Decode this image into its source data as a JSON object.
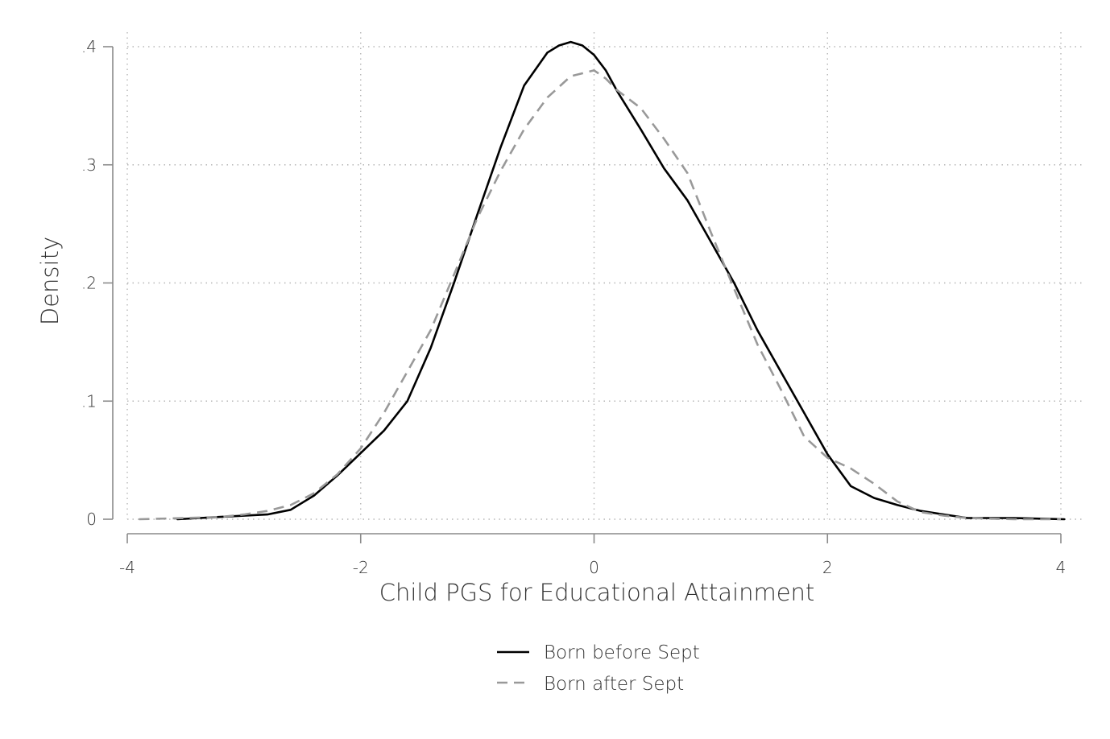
{
  "chart_data": {
    "type": "line",
    "title": "",
    "xlabel": "Child PGS for Educational Attainment",
    "ylabel": "Density",
    "xlim": [
      -4,
      4
    ],
    "ylim": [
      0,
      0.4
    ],
    "x_ticks": [
      -4,
      -2,
      0,
      2,
      4
    ],
    "x_tick_labels": [
      "-4",
      "-2",
      "0",
      "2",
      "4"
    ],
    "y_ticks": [
      0,
      0.1,
      0.2,
      0.3,
      0.4
    ],
    "y_tick_labels": [
      "0",
      ".1",
      ".2",
      ".3",
      ".4"
    ],
    "grid": true,
    "legend_position": "bottom",
    "series": [
      {
        "name": "Born before Sept",
        "color": "#000000",
        "dash": "solid",
        "x": [
          -3.57,
          -3.2,
          -3.0,
          -2.8,
          -2.6,
          -2.4,
          -2.2,
          -2.0,
          -1.8,
          -1.6,
          -1.4,
          -1.2,
          -1.0,
          -0.8,
          -0.6,
          -0.4,
          -0.3,
          -0.2,
          -0.1,
          0.0,
          0.1,
          0.2,
          0.4,
          0.6,
          0.8,
          1.0,
          1.2,
          1.4,
          1.6,
          1.8,
          2.0,
          2.2,
          2.4,
          2.6,
          2.8,
          3.0,
          3.2,
          3.6,
          4.03
        ],
        "y": [
          0.0,
          0.002,
          0.003,
          0.004,
          0.008,
          0.02,
          0.037,
          0.056,
          0.075,
          0.1,
          0.145,
          0.2,
          0.258,
          0.315,
          0.367,
          0.395,
          0.401,
          0.404,
          0.401,
          0.393,
          0.38,
          0.362,
          0.33,
          0.297,
          0.27,
          0.235,
          0.2,
          0.16,
          0.125,
          0.09,
          0.055,
          0.028,
          0.018,
          0.012,
          0.007,
          0.004,
          0.001,
          0.001,
          0.0
        ]
      },
      {
        "name": "Born after Sept",
        "color": "#999999",
        "dash": "dashed",
        "x": [
          -3.9,
          -3.5,
          -3.2,
          -3.0,
          -2.8,
          -2.6,
          -2.4,
          -2.2,
          -2.0,
          -1.8,
          -1.6,
          -1.4,
          -1.2,
          -1.0,
          -0.8,
          -0.6,
          -0.4,
          -0.2,
          0.0,
          0.1,
          0.2,
          0.4,
          0.6,
          0.8,
          1.0,
          1.2,
          1.4,
          1.6,
          1.8,
          2.0,
          2.2,
          2.4,
          2.6,
          2.8,
          3.0,
          3.2,
          3.6,
          4.0
        ],
        "y": [
          0.0,
          0.001,
          0.002,
          0.004,
          0.007,
          0.012,
          0.022,
          0.038,
          0.06,
          0.09,
          0.125,
          0.16,
          0.207,
          0.255,
          0.295,
          0.33,
          0.357,
          0.375,
          0.38,
          0.373,
          0.363,
          0.348,
          0.322,
          0.293,
          0.243,
          0.195,
          0.148,
          0.11,
          0.07,
          0.052,
          0.043,
          0.03,
          0.015,
          0.006,
          0.003,
          0.001,
          0.0,
          0.0
        ]
      }
    ]
  }
}
